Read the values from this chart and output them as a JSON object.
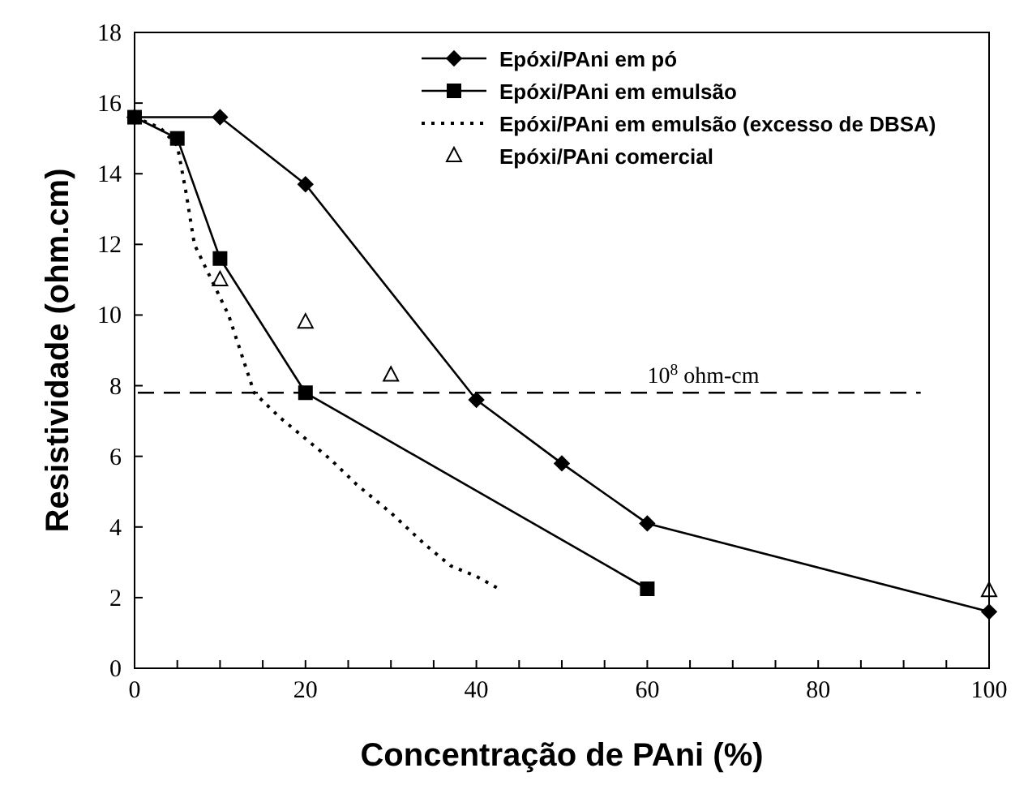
{
  "chart_data": {
    "type": "line",
    "xlabel": "Concentração de PAni (%)",
    "ylabel": "Resistividade (ohm.cm)",
    "xlim": [
      0,
      100
    ],
    "ylim": [
      0,
      18
    ],
    "xticks": [
      0,
      {
        "value": 5,
        "label": null
      },
      20,
      {
        "value": 10,
        "label": null
      },
      {
        "value": 15,
        "label": null
      },
      {
        "value": 25,
        "label": null
      },
      {
        "value": 30,
        "label": null
      },
      {
        "value": 35,
        "label": null
      },
      40,
      {
        "value": 45,
        "label": null
      },
      {
        "value": 50,
        "label": null
      },
      {
        "value": 55,
        "label": null
      },
      60,
      {
        "value": 65,
        "label": null
      },
      {
        "value": 70,
        "label": null
      },
      {
        "value": 75,
        "label": null
      },
      80,
      {
        "value": 85,
        "label": null
      },
      {
        "value": 90,
        "label": null
      },
      {
        "value": 95,
        "label": null
      },
      100
    ],
    "yticks": [
      0,
      2,
      4,
      6,
      8,
      10,
      12,
      14,
      16,
      18
    ],
    "legend": "top right",
    "grid": false,
    "ref_lines": [
      {
        "axis": "y",
        "value": 7.8,
        "label": "10$^{8}$ ohm-cm",
        "line_style": "dashed",
        "color": "#000000"
      }
    ],
    "series": [
      {
        "name": "Epóxi/PAni em pó",
        "color": "#000000",
        "marker": "diamond",
        "line_style": "solid",
        "x": [
          0,
          10,
          20,
          40,
          50,
          60,
          100
        ],
        "values": [
          15.6,
          15.6,
          13.7,
          7.6,
          5.8,
          4.1,
          1.6
        ]
      },
      {
        "name": "Epóxi/PAni em emulsão",
        "color": "#000000",
        "marker": "square",
        "line_style": "solid",
        "x": [
          0,
          5,
          10,
          20,
          60
        ],
        "values": [
          15.6,
          15.0,
          11.6,
          7.8,
          2.25
        ]
      },
      {
        "name": "Epóxi/PAni em emulsão (excesso de DBSA)",
        "color": "#000000",
        "marker": "none",
        "line_style": "dotted",
        "x": [
          0,
          3,
          5,
          6,
          7,
          9,
          11,
          14,
          17,
          20,
          23,
          26,
          30,
          34,
          37,
          40,
          43
        ],
        "values": [
          15.6,
          15.3,
          14.8,
          13.5,
          12,
          11,
          10,
          7.8,
          7.1,
          6.5,
          5.9,
          5.2,
          4.4,
          3.5,
          2.9,
          2.6,
          2.2
        ]
      },
      {
        "name": "Epóxi/PAni comercial",
        "type": "scatter",
        "color": "#000000",
        "marker": "triangle",
        "x": [
          10,
          20,
          30,
          100
        ],
        "values": [
          11,
          9.8,
          8.3,
          2.2
        ]
      }
    ]
  }
}
